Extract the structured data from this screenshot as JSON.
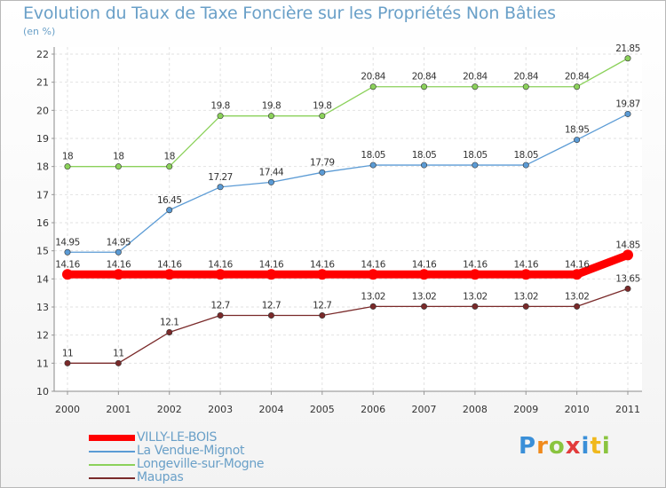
{
  "chart_data": {
    "type": "line",
    "title": "Evolution du Taux de Taxe Foncière sur les Propriétés Non Bâties",
    "ylabel": "(en %)",
    "xlabel": "",
    "categories": [
      "2000",
      "2001",
      "2002",
      "2003",
      "2004",
      "2005",
      "2006",
      "2007",
      "2008",
      "2009",
      "2010",
      "2011"
    ],
    "ylim": [
      10,
      22
    ],
    "yticks": [
      "10",
      "11",
      "12",
      "13",
      "14",
      "15",
      "16",
      "17",
      "18",
      "19",
      "20",
      "21",
      "22"
    ],
    "grid": true,
    "legend_position": "bottom-left",
    "series": [
      {
        "name": "VILLY-LE-BOIS",
        "color": "#ff0000",
        "emphasis": true,
        "values": [
          14.16,
          14.16,
          14.16,
          14.16,
          14.16,
          14.16,
          14.16,
          14.16,
          14.16,
          14.16,
          14.16,
          14.85
        ],
        "labels": [
          "14.16",
          "14.16",
          "14.16",
          "14.16",
          "14.16",
          "14.16",
          "14.16",
          "14.16",
          "14.16",
          "14.16",
          "14.16",
          "14.85"
        ]
      },
      {
        "name": "La Vendue-Mignot",
        "color": "#5b9bd5",
        "values": [
          14.95,
          14.95,
          16.45,
          17.27,
          17.44,
          17.79,
          18.05,
          18.05,
          18.05,
          18.05,
          18.95,
          19.87
        ],
        "labels": [
          "14.95",
          "14.95",
          "16.45",
          "17.27",
          "17.44",
          "17.79",
          "18.05",
          "18.05",
          "18.05",
          "18.05",
          "18.95",
          "19.87"
        ]
      },
      {
        "name": "Longeville-sur-Mogne",
        "color": "#8bd15a",
        "values": [
          18,
          18,
          18,
          19.8,
          19.8,
          19.8,
          20.84,
          20.84,
          20.84,
          20.84,
          20.84,
          21.85
        ],
        "labels": [
          "18",
          "18",
          "18",
          "19.8",
          "19.8",
          "19.8",
          "20.84",
          "20.84",
          "20.84",
          "20.84",
          "20.84",
          "21.85"
        ]
      },
      {
        "name": "Maupas",
        "color": "#7a2a2a",
        "values": [
          11,
          11,
          12.1,
          12.7,
          12.7,
          12.7,
          13.02,
          13.02,
          13.02,
          13.02,
          13.02,
          13.65
        ],
        "labels": [
          "11",
          "11",
          "12.1",
          "12.7",
          "12.7",
          "12.7",
          "13.02",
          "13.02",
          "13.02",
          "13.02",
          "13.02",
          "13.65"
        ]
      }
    ]
  },
  "logo": {
    "letters": [
      "P",
      "r",
      "o",
      "x",
      "i",
      "t",
      "i"
    ],
    "colors": [
      "#3a8fd8",
      "#f08a1c",
      "#8ac43f",
      "#e23b3b",
      "#3a8fd8",
      "#f0b81c",
      "#8ac43f"
    ]
  }
}
